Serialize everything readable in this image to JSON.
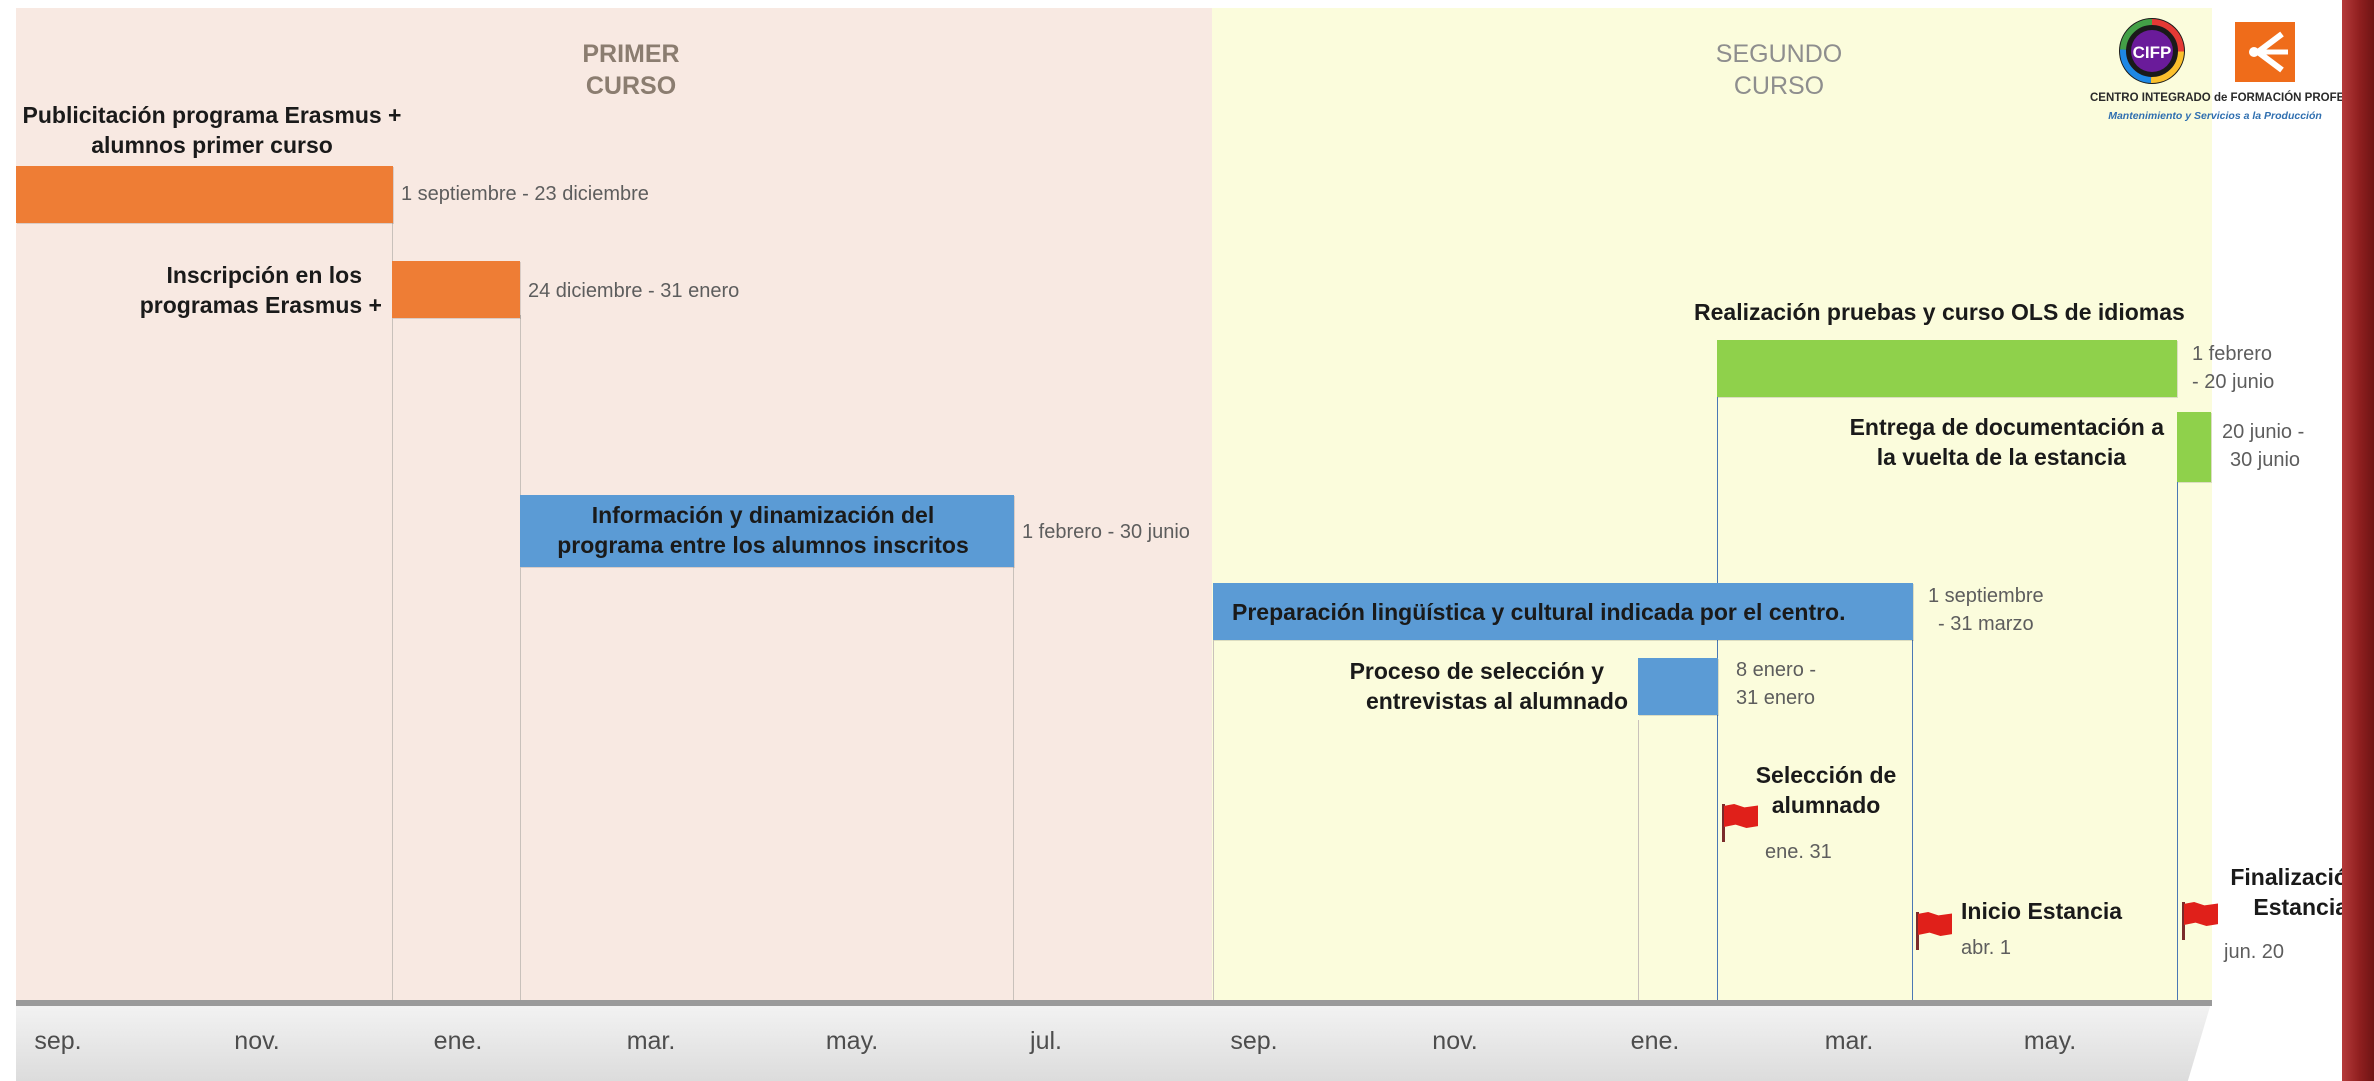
{
  "colors": {
    "first_year_bg": "#f8e9e2",
    "second_year_bg": "#fbfcdc",
    "orange": "#ee7d35",
    "blue": "#5b9bd5",
    "green": "#8fd14b",
    "flag": "#e0201a"
  },
  "sections": {
    "first": {
      "title_line1": "PRIMER",
      "title_line2": "CURSO"
    },
    "second": {
      "title_line1": "SEGUNDO",
      "title_line2": "CURSO"
    }
  },
  "logo": {
    "acronym": "CIFP",
    "caption_line1": "CENTRO INTEGRADO de FORMACIÓN PROFESIONAL",
    "caption_line2": "Mantenimiento y Servicios a la Producción",
    "icon": "cifp-logo-icon"
  },
  "axis": {
    "ticks": [
      "sep.",
      "nov.",
      "ene.",
      "mar.",
      "may.",
      "jul.",
      "sep.",
      "nov.",
      "ene.",
      "mar.",
      "may."
    ]
  },
  "tasks": {
    "publicidad": {
      "label_line1": "Publicitación programa Erasmus +",
      "label_line2": "alumnos  primer curso",
      "dates": "1 septiembre - 23 diciembre"
    },
    "inscripcion": {
      "label_line1": "Inscripción en los",
      "label_line2": "programas Erasmus +",
      "dates": "24 diciembre - 31 enero"
    },
    "informacion": {
      "label_line1": "Información y  dinamización del",
      "label_line2": "programa entre los alumnos inscritos",
      "dates": "1 febrero - 30 junio"
    },
    "preparacion": {
      "label": "Preparación lingüística y cultural indicada por el centro.",
      "dates_line1": "1 septiembre",
      "dates_line2": "- 31 marzo"
    },
    "seleccion_proceso": {
      "label_line1": "Proceso de selección y",
      "label_line2": "entrevistas al alumnado",
      "dates_line1": "8 enero -",
      "dates_line2": "31 enero"
    },
    "ols": {
      "label": "Realización pruebas y curso OLS de idiomas",
      "dates_line1": "1 febrero",
      "dates_line2": "- 20 junio"
    },
    "entrega": {
      "label_line1": "Entrega de documentación a",
      "label_line2": "la vuelta de la estancia",
      "dates_line1": "20 junio -",
      "dates_line2": "30 junio"
    }
  },
  "milestones": {
    "seleccion": {
      "label_line1": "Selección de",
      "label_line2": "alumnado",
      "date": "ene. 31",
      "icon": "flag-icon"
    },
    "inicio": {
      "label": "Inicio Estancia",
      "date": "abr. 1",
      "icon": "flag-icon"
    },
    "final": {
      "label_line1": "Finalización",
      "label_line2": "Estancia",
      "date": "jun. 20",
      "icon": "flag-icon"
    }
  }
}
